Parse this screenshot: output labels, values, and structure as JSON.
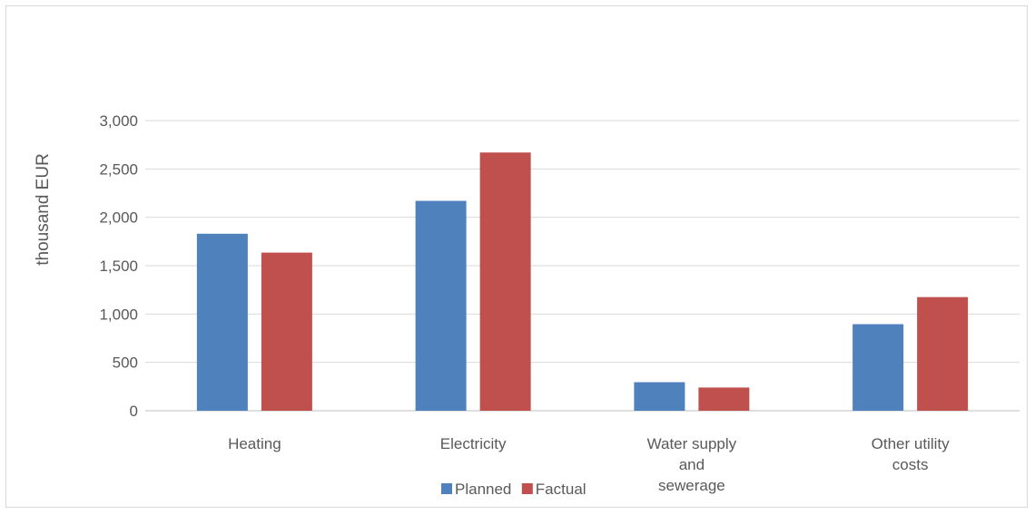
{
  "chart_data": {
    "type": "bar",
    "title": "",
    "xlabel": "",
    "ylabel": "thousand EUR",
    "categories": [
      "Heating",
      "Electricity",
      "Water supply and sewerage",
      "Other utility costs"
    ],
    "category_lines": [
      [
        "Heating"
      ],
      [
        "Electricity"
      ],
      [
        "Water supply",
        "and",
        "sewerage"
      ],
      [
        "Other utility",
        "costs"
      ]
    ],
    "series": [
      {
        "name": "Planned",
        "color": "#4f81bd",
        "values": [
          1830,
          2170,
          295,
          895
        ]
      },
      {
        "name": "Factual",
        "color": "#c0504d",
        "values": [
          1635,
          2670,
          240,
          1175
        ]
      }
    ],
    "ylim": [
      0,
      3000
    ],
    "yticks": [
      0,
      500,
      1000,
      1500,
      2000,
      2500,
      3000
    ],
    "ytick_labels": [
      "0",
      "500",
      "1,000",
      "1,500",
      "2,000",
      "2,500",
      "3,000"
    ],
    "grid": true,
    "legend_position": "bottom"
  }
}
